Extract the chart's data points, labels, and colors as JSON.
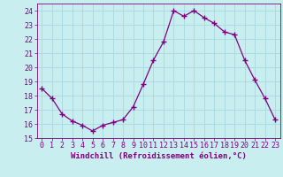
{
  "x": [
    0,
    1,
    2,
    3,
    4,
    5,
    6,
    7,
    8,
    9,
    10,
    11,
    12,
    13,
    14,
    15,
    16,
    17,
    18,
    19,
    20,
    21,
    22,
    23
  ],
  "y": [
    18.5,
    17.8,
    16.7,
    16.2,
    15.9,
    15.5,
    15.9,
    16.1,
    16.3,
    17.2,
    18.8,
    20.5,
    21.8,
    24.0,
    23.6,
    24.0,
    23.5,
    23.1,
    22.5,
    22.3,
    20.5,
    19.1,
    17.8,
    16.3
  ],
  "line_color": "#800080",
  "marker": "+",
  "marker_size": 4,
  "bg_color": "#c8eef0",
  "grid_color": "#a8d8e0",
  "xlabel": "Windchill (Refroidissement éolien,°C)",
  "xlabel_color": "#800080",
  "tick_color": "#800080",
  "ylim": [
    15,
    24.5
  ],
  "yticks": [
    15,
    16,
    17,
    18,
    19,
    20,
    21,
    22,
    23,
    24
  ],
  "xlim": [
    -0.5,
    23.5
  ],
  "xticks": [
    0,
    1,
    2,
    3,
    4,
    5,
    6,
    7,
    8,
    9,
    10,
    11,
    12,
    13,
    14,
    15,
    16,
    17,
    18,
    19,
    20,
    21,
    22,
    23
  ],
  "xtick_labels": [
    "0",
    "1",
    "2",
    "3",
    "4",
    "5",
    "6",
    "7",
    "8",
    "9",
    "10",
    "11",
    "12",
    "13",
    "14",
    "15",
    "16",
    "17",
    "18",
    "19",
    "20",
    "21",
    "22",
    "23"
  ],
  "ytick_labels": [
    "15",
    "16",
    "17",
    "18",
    "19",
    "20",
    "21",
    "22",
    "23",
    "24"
  ],
  "tick_fontsize": 6,
  "xlabel_fontsize": 6.5,
  "lw": 0.9
}
